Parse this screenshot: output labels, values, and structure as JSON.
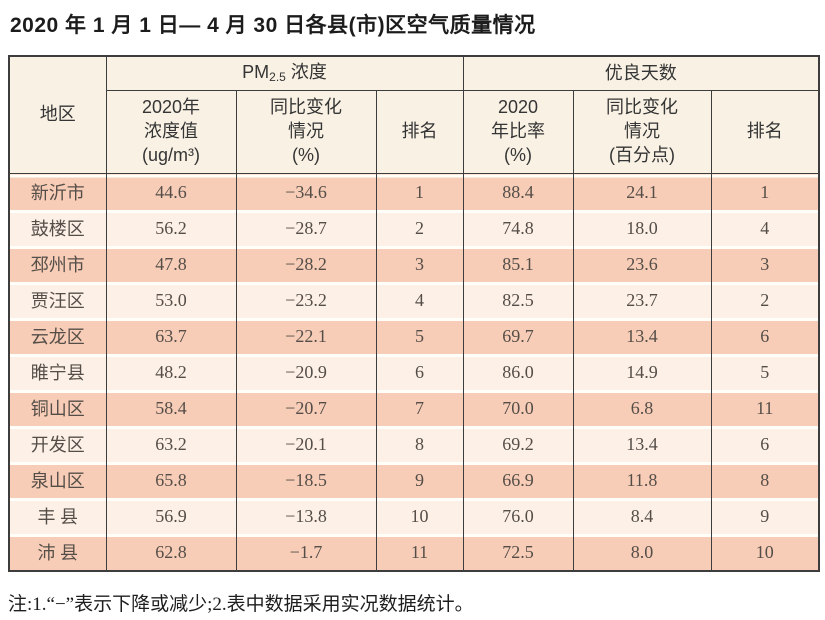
{
  "title": "2020 年 1 月 1 日— 4 月 30 日各县(市)区空气质量情况",
  "table": {
    "region_header": "地区",
    "groups": {
      "pm25": {
        "prefix": "PM",
        "sub": "2.5",
        "suffix": " 浓度"
      },
      "good_days": "优良天数"
    },
    "subheaders": [
      "2020年\n浓度值\n(ug/m³)",
      "同比变化\n情况\n(%)",
      "排名",
      "2020\n年比率\n(%)",
      "同比变化\n情况\n(百分点)",
      "排名"
    ],
    "rows": [
      {
        "region": "新沂市",
        "values": [
          "44.6",
          "−34.6",
          "1",
          "88.4",
          "24.1",
          "1"
        ]
      },
      {
        "region": "鼓楼区",
        "values": [
          "56.2",
          "−28.7",
          "2",
          "74.8",
          "18.0",
          "4"
        ]
      },
      {
        "region": "邳州市",
        "values": [
          "47.8",
          "−28.2",
          "3",
          "85.1",
          "23.6",
          "3"
        ]
      },
      {
        "region": "贾汪区",
        "values": [
          "53.0",
          "−23.2",
          "4",
          "82.5",
          "23.7",
          "2"
        ]
      },
      {
        "region": "云龙区",
        "values": [
          "63.7",
          "−22.1",
          "5",
          "69.7",
          "13.4",
          "6"
        ]
      },
      {
        "region": "睢宁县",
        "values": [
          "48.2",
          "−20.9",
          "6",
          "86.0",
          "14.9",
          "5"
        ]
      },
      {
        "region": "铜山区",
        "values": [
          "58.4",
          "−20.7",
          "7",
          "70.0",
          "6.8",
          "11"
        ]
      },
      {
        "region": "开发区",
        "values": [
          "63.2",
          "−20.1",
          "8",
          "69.2",
          "13.4",
          "6"
        ]
      },
      {
        "region": "泉山区",
        "values": [
          "65.8",
          "−18.5",
          "9",
          "66.9",
          "11.8",
          "8"
        ]
      },
      {
        "region": "丰 县",
        "values": [
          "56.9",
          "−13.8",
          "10",
          "76.0",
          "8.4",
          "9"
        ]
      },
      {
        "region": "沛 县",
        "values": [
          "62.8",
          "−1.7",
          "11",
          "72.5",
          "8.0",
          "10"
        ]
      }
    ]
  },
  "note": "注:1.“−”表示下降或减少;2.表中数据采用实况数据统计。",
  "colors": {
    "row_odd": "#f8cdb7",
    "row_even": "#fcf0e7",
    "header_bg": "#f8f1e4",
    "border": "#3d3d3d",
    "row_gap": "#fffef9"
  }
}
